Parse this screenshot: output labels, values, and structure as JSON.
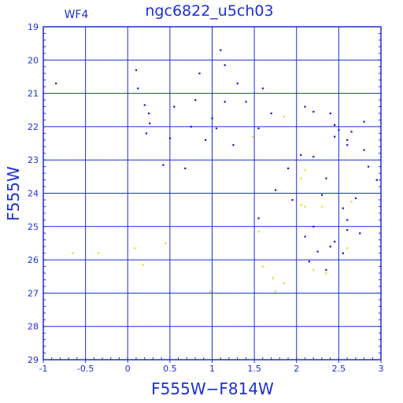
{
  "chart_data": {
    "type": "scatter",
    "title": "ngc6822_u5ch03",
    "subtitle": "WF4",
    "xlabel": "F555W−F814W",
    "ylabel": "F555W",
    "xlim": [
      -1,
      3
    ],
    "ylim": [
      29,
      19
    ],
    "y_axis_inverted": true,
    "grid": true,
    "x_ticks": [
      "-1",
      "-0.5",
      "0",
      "0.5",
      "1",
      "1.5",
      "2",
      "2.5",
      "3"
    ],
    "y_ticks": [
      "19",
      "20",
      "21",
      "22",
      "23",
      "24",
      "25",
      "26",
      "27",
      "28",
      "29"
    ],
    "series": [
      {
        "color": "#1414d2",
        "marker": "dot",
        "values": [
          [
            -0.85,
            20.7
          ],
          [
            0.1,
            20.3
          ],
          [
            0.12,
            20.85
          ],
          [
            0.85,
            20.4
          ],
          [
            1.15,
            20.15
          ],
          [
            1.1,
            19.7
          ],
          [
            1.3,
            20.7
          ],
          [
            1.6,
            20.85
          ],
          [
            1.15,
            21.25
          ],
          [
            0.2,
            21.35
          ],
          [
            0.25,
            21.6
          ],
          [
            0.26,
            21.9
          ],
          [
            0.22,
            22.2
          ],
          [
            0.55,
            21.4
          ],
          [
            0.8,
            21.2
          ],
          [
            0.5,
            22.35
          ],
          [
            1.0,
            21.75
          ],
          [
            1.4,
            21.25
          ],
          [
            1.7,
            21.6
          ],
          [
            2.1,
            21.4
          ],
          [
            2.2,
            21.55
          ],
          [
            2.4,
            21.6
          ],
          [
            2.45,
            21.95
          ],
          [
            2.6,
            22.4
          ],
          [
            2.45,
            22.3
          ],
          [
            2.6,
            22.55
          ],
          [
            2.8,
            22.7
          ],
          [
            2.85,
            23.2
          ],
          [
            2.95,
            23.6
          ],
          [
            2.7,
            24.15
          ],
          [
            2.55,
            24.45
          ],
          [
            2.6,
            24.8
          ],
          [
            2.6,
            25.1
          ],
          [
            2.75,
            25.2
          ],
          [
            2.2,
            25.0
          ],
          [
            2.1,
            25.3
          ],
          [
            2.45,
            25.45
          ],
          [
            2.4,
            25.6
          ],
          [
            2.25,
            25.75
          ],
          [
            1.95,
            24.2
          ],
          [
            2.35,
            23.55
          ],
          [
            2.05,
            22.85
          ],
          [
            2.2,
            22.9
          ],
          [
            2.5,
            22.1
          ],
          [
            2.65,
            22.15
          ],
          [
            2.8,
            21.85
          ],
          [
            1.9,
            23.25
          ],
          [
            1.75,
            23.9
          ],
          [
            1.55,
            24.75
          ],
          [
            2.3,
            24.05
          ],
          [
            2.55,
            25.8
          ],
          [
            2.35,
            26.3
          ],
          [
            2.15,
            26.05
          ],
          [
            0.75,
            22.0
          ],
          [
            1.05,
            22.05
          ],
          [
            0.42,
            23.15
          ],
          [
            0.68,
            23.25
          ],
          [
            0.92,
            22.4
          ],
          [
            1.25,
            22.55
          ],
          [
            1.55,
            22.05
          ]
        ]
      },
      {
        "color": "#e8dc10",
        "marker": "dot",
        "values": [
          [
            -0.65,
            25.8
          ],
          [
            -0.35,
            25.8
          ],
          [
            0.18,
            26.15
          ],
          [
            0.08,
            25.65
          ],
          [
            1.6,
            26.2
          ],
          [
            1.75,
            26.95
          ],
          [
            2.2,
            26.3
          ],
          [
            2.35,
            26.4
          ],
          [
            2.05,
            24.35
          ],
          [
            2.1,
            24.4
          ],
          [
            2.3,
            24.4
          ],
          [
            2.65,
            24.25
          ],
          [
            2.05,
            23.55
          ],
          [
            2.1,
            23.3
          ],
          [
            2.6,
            25.65
          ],
          [
            1.72,
            26.55
          ],
          [
            1.85,
            26.7
          ],
          [
            0.98,
            26.95
          ],
          [
            1.48,
            22.3
          ],
          [
            1.85,
            21.7
          ],
          [
            0.45,
            25.5
          ],
          [
            1.55,
            25.15
          ]
        ]
      }
    ]
  }
}
